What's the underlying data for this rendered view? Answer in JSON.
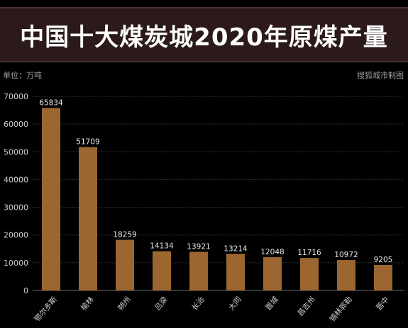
{
  "header": {
    "title": "中国十大煤炭城2020年原煤产量",
    "unit": "单位：万吨",
    "source": "搜狐城市制图"
  },
  "chart_data": {
    "type": "bar",
    "categories": [
      "鄂尔多斯",
      "榆林",
      "朔州",
      "吕梁",
      "长治",
      "大同",
      "晋城",
      "昌吉州",
      "锡林郭勒",
      "晋中"
    ],
    "values": [
      65834,
      51709,
      18259,
      14134,
      13921,
      13214,
      12048,
      11716,
      10972,
      9205
    ],
    "yticks": [
      0,
      10000,
      20000,
      30000,
      40000,
      50000,
      60000,
      70000
    ],
    "ylim": [
      0,
      70000
    ],
    "bar_color": "#9c6630",
    "grid": true,
    "legend": false
  }
}
